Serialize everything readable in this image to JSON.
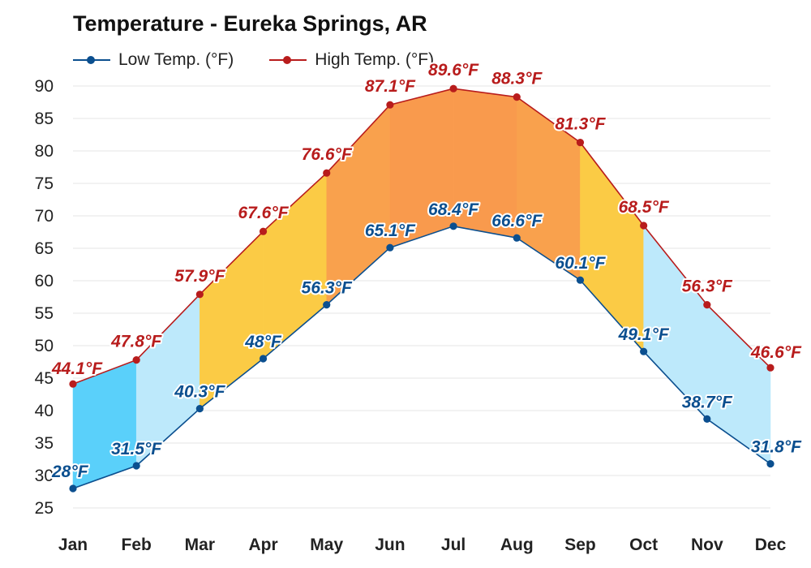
{
  "chart_data": {
    "type": "line",
    "title": "Temperature - Eureka Springs, AR",
    "categories": [
      "Jan",
      "Feb",
      "Mar",
      "Apr",
      "May",
      "Jun",
      "Jul",
      "Aug",
      "Sep",
      "Oct",
      "Nov",
      "Dec"
    ],
    "series": [
      {
        "name": "Low Temp. (°F)",
        "color": "#0b4f8f",
        "values": [
          28,
          31.5,
          40.3,
          48,
          56.3,
          65.1,
          68.4,
          66.6,
          60.1,
          49.1,
          38.7,
          31.8
        ],
        "labels": [
          "28°F",
          "31.5°F",
          "40.3°F",
          "48°F",
          "56.3°F",
          "65.1°F",
          "68.4°F",
          "66.6°F",
          "60.1°F",
          "49.1°F",
          "38.7°F",
          "31.8°F"
        ]
      },
      {
        "name": "High Temp. (°F)",
        "color": "#b81c1c",
        "values": [
          44.1,
          47.8,
          57.9,
          67.6,
          76.6,
          87.1,
          89.6,
          88.3,
          81.3,
          68.5,
          56.3,
          46.6
        ],
        "labels": [
          "44.1°F",
          "47.8°F",
          "57.9°F",
          "67.6°F",
          "76.6°F",
          "87.1°F",
          "89.6°F",
          "88.3°F",
          "81.3°F",
          "68.5°F",
          "56.3°F",
          "46.6°F"
        ]
      }
    ],
    "band_colors": [
      "#5ad0fa",
      "#bde9fb",
      "#fbcb45",
      "#fbcb45",
      "#f9a14d",
      "#f99a4d",
      "#f99a4d",
      "#f9a14d",
      "#fbcb45",
      "#bde9fb",
      "#bde9fb",
      "#5ad0fa"
    ],
    "ylim": [
      25,
      90
    ],
    "yticks": [
      25,
      30,
      35,
      40,
      45,
      50,
      55,
      60,
      65,
      70,
      75,
      80,
      85,
      90
    ],
    "xlabel": "",
    "ylabel": "",
    "grid": true,
    "legend": "top-left"
  }
}
